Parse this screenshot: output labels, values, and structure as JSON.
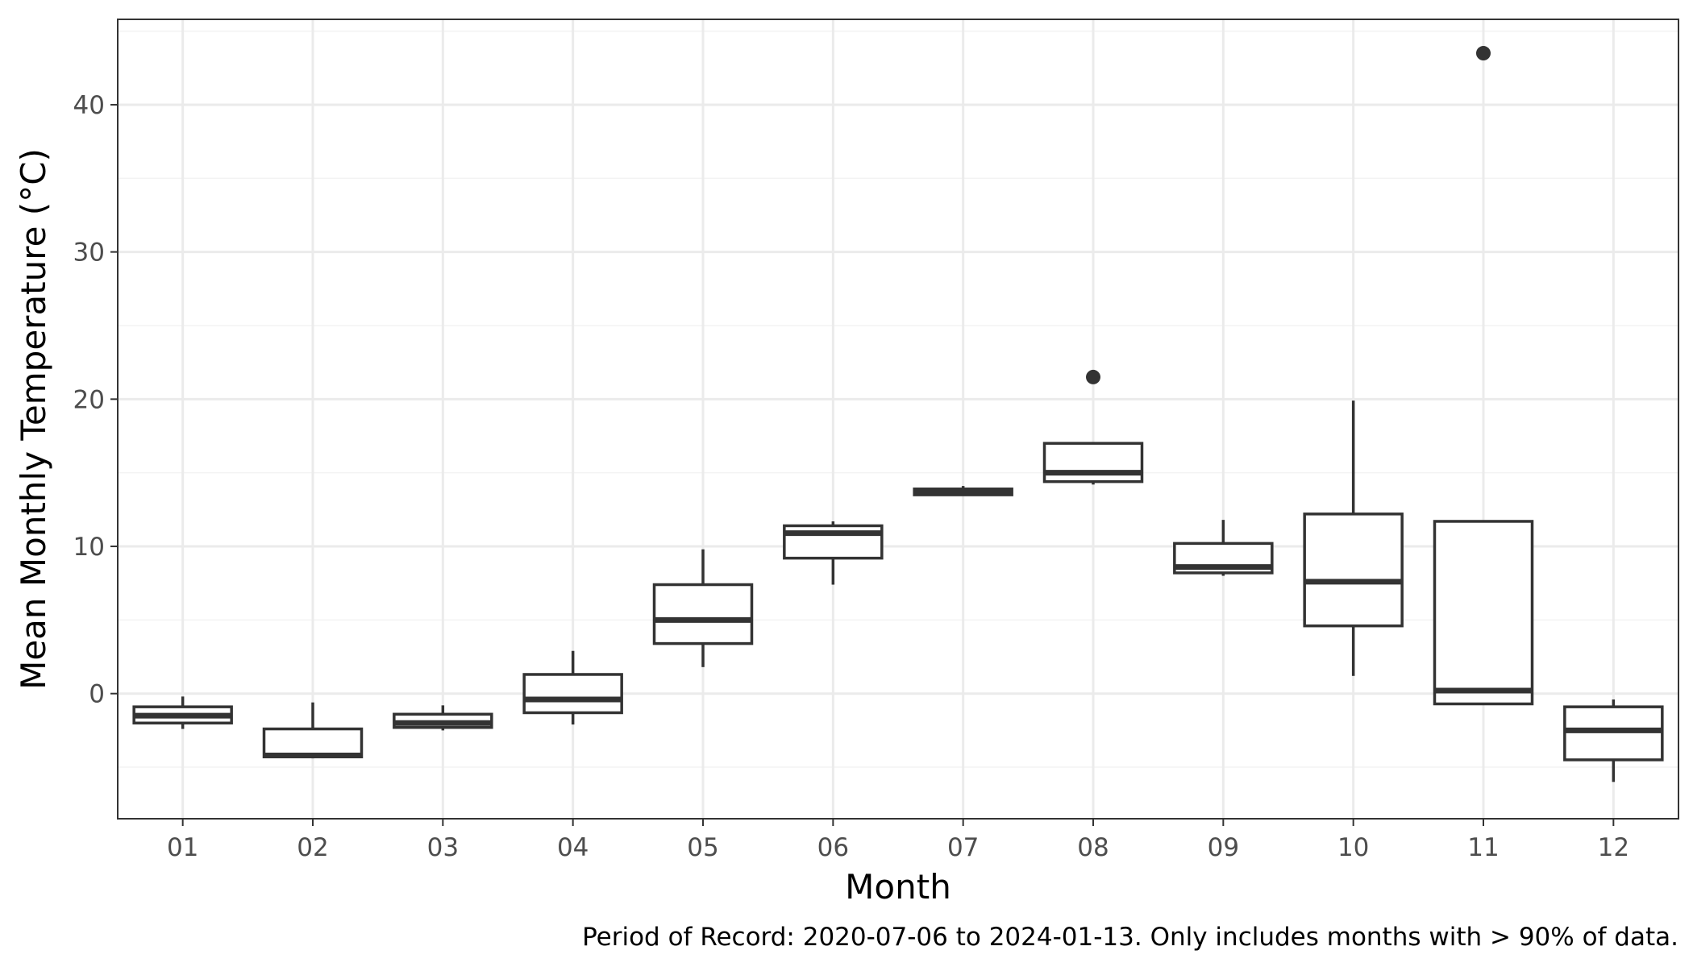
{
  "chart_data": {
    "type": "boxplot",
    "title": "",
    "xlabel": "Month",
    "ylabel": "Mean Monthly Temperature (°C)",
    "caption": "Period of Record: 2020-07-06 to 2024-01-13. Only includes months with > 90% of data.",
    "categories": [
      "01",
      "02",
      "03",
      "04",
      "05",
      "06",
      "07",
      "08",
      "09",
      "10",
      "11",
      "12"
    ],
    "yticks": [
      0,
      10,
      20,
      30,
      40
    ],
    "ylim": [
      -8.5,
      45.8
    ],
    "grid": true,
    "legend": "none",
    "boxes": [
      {
        "category": "01",
        "whisker_low": -2.4,
        "q1": -2.0,
        "median": -1.5,
        "q3": -0.9,
        "whisker_high": -0.2,
        "outliers": []
      },
      {
        "category": "02",
        "whisker_low": -4.4,
        "q1": -4.3,
        "median": -4.2,
        "q3": -2.4,
        "whisker_high": -0.6,
        "outliers": []
      },
      {
        "category": "03",
        "whisker_low": -2.5,
        "q1": -2.3,
        "median": -2.0,
        "q3": -1.4,
        "whisker_high": -0.8,
        "outliers": []
      },
      {
        "category": "04",
        "whisker_low": -2.1,
        "q1": -1.3,
        "median": -0.4,
        "q3": 1.3,
        "whisker_high": 2.9,
        "outliers": []
      },
      {
        "category": "05",
        "whisker_low": 1.8,
        "q1": 3.4,
        "median": 5.0,
        "q3": 7.4,
        "whisker_high": 9.8,
        "outliers": []
      },
      {
        "category": "06",
        "whisker_low": 7.4,
        "q1": 9.2,
        "median": 10.9,
        "q3": 11.4,
        "whisker_high": 11.7,
        "outliers": []
      },
      {
        "category": "07",
        "whisker_low": 13.5,
        "q1": 13.5,
        "median": 13.7,
        "q3": 13.9,
        "whisker_high": 14.1,
        "outliers": []
      },
      {
        "category": "08",
        "whisker_low": 14.2,
        "q1": 14.4,
        "median": 15.0,
        "q3": 17.0,
        "whisker_high": 17.0,
        "outliers": [
          21.5
        ]
      },
      {
        "category": "09",
        "whisker_low": 8.0,
        "q1": 8.2,
        "median": 8.6,
        "q3": 10.2,
        "whisker_high": 11.8,
        "outliers": []
      },
      {
        "category": "10",
        "whisker_low": 1.2,
        "q1": 4.6,
        "median": 7.6,
        "q3": 12.2,
        "whisker_high": 19.9,
        "outliers": []
      },
      {
        "category": "11",
        "whisker_low": -0.7,
        "q1": -0.7,
        "median": 0.2,
        "q3": 11.7,
        "whisker_high": 11.7,
        "outliers": [
          43.5
        ]
      },
      {
        "category": "12",
        "whisker_low": -6.0,
        "q1": -4.5,
        "median": -2.5,
        "q3": -0.9,
        "whisker_high": -0.4,
        "outliers": []
      }
    ],
    "colors": {
      "box_stroke": "#333333",
      "box_fill": "#ffffff",
      "outlier": "#333333",
      "grid_major": "#ebebeb",
      "grid_minor": "#f3f3f3",
      "panel_border": "#333333",
      "tick_text": "#4d4d4d",
      "title_text": "#000000"
    }
  }
}
